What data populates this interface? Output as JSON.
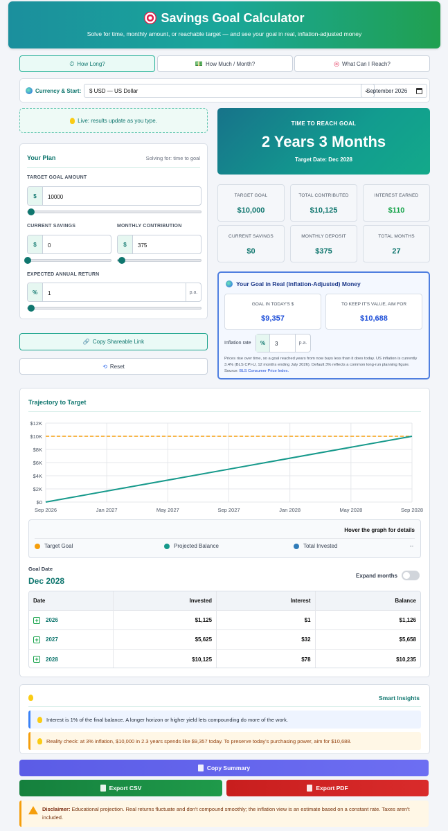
{
  "header": {
    "title": "Savings Goal Calculator",
    "subtitle": "Solve for time, monthly amount, or reachable target — and see your goal in real, inflation-adjusted money"
  },
  "tabs": [
    {
      "icon": "⏱",
      "label": "How Long?"
    },
    {
      "icon": "💵",
      "label": "How Much / Month?"
    },
    {
      "icon": "◎",
      "label": "What Can I Reach?"
    }
  ],
  "currency": {
    "label": "Currency & Start:",
    "selected": "$ USD — US Dollar",
    "start": "September 2026"
  },
  "live_note": "Live: results update as you type.",
  "plan": {
    "title": "Your Plan",
    "solving": "Solving for: time to goal",
    "target_label": "TARGET GOAL AMOUNT",
    "target_value": "10000",
    "target_slider": 0.02,
    "savings_label": "CURRENT SAVINGS",
    "savings_value": "0",
    "savings_slider": 0,
    "monthly_label": "MONTHLY CONTRIBUTION",
    "monthly_value": "375",
    "monthly_slider": 0.05,
    "return_label": "EXPECTED ANNUAL RETURN",
    "return_value": "1",
    "return_slider": 0.02,
    "return_suffix": "p.a.",
    "prefix_currency": "$",
    "prefix_percent": "%"
  },
  "buttons": {
    "copy_link": "Copy Shareable Link",
    "reset": "Reset",
    "copy_summary": "Copy Summary",
    "export_csv": "Export CSV",
    "export_pdf": "Export PDF"
  },
  "result": {
    "label": "TIME TO REACH GOAL",
    "value": "2 Years 3 Months",
    "target_date": "Target Date: Dec 2028"
  },
  "stats": [
    {
      "label": "TARGET GOAL",
      "value": "$10,000"
    },
    {
      "label": "TOTAL CONTRIBUTED",
      "value": "$10,125"
    },
    {
      "label": "INTEREST EARNED",
      "value": "$110"
    },
    {
      "label": "CURRENT SAVINGS",
      "value": "$0"
    },
    {
      "label": "MONTHLY DEPOSIT",
      "value": "$375"
    },
    {
      "label": "TOTAL MONTHS",
      "value": "27"
    }
  ],
  "real": {
    "title": "Your Goal in Real (Inflation-Adjusted) Money",
    "today_label": "GOAL IN TODAY'S $",
    "today_value": "$9,357",
    "aim_label": "TO KEEP IT'S VALUE, AIM FOR",
    "aim_value": "$10,688",
    "inflation_label": "Inflation rate",
    "inflation_value": "3",
    "note": "Prices rise over time, so a goal reached years from now buys less than it does today. US inflation is currently 3.4% (BLS CPI-U, 12 months ending July 2026). Default 3% reflects a common long-run planning figure. Source: ",
    "source_link": "BLS Consumer Price Index."
  },
  "trajectory": {
    "title": "Trajectory to Target",
    "hover_hint": "Hover the graph for details",
    "legend": [
      "Target Goal",
      "Projected Balance",
      "Total Invested"
    ],
    "legend_value": "--",
    "goal_date_label": "Goal Date",
    "goal_date_value": "Dec 2028",
    "expand_label": "Expand months"
  },
  "chart_data": {
    "type": "line",
    "x": [
      "Sep 2026",
      "Jan 2027",
      "May 2027",
      "Sep 2027",
      "Jan 2028",
      "May 2028",
      "Sep 2028"
    ],
    "y_ticks": [
      "$0",
      "$2K",
      "$4K",
      "$6K",
      "$8K",
      "$10K",
      "$12K"
    ],
    "ylim": [
      0,
      12000
    ],
    "series": [
      {
        "name": "Projected Balance",
        "color": "#16998b",
        "start": 0,
        "end": 10000
      },
      {
        "name": "Target Goal",
        "color": "#f59e0b",
        "value": 10000
      }
    ],
    "grid": true
  },
  "table": {
    "headers": [
      "Date",
      "Invested",
      "Interest",
      "Balance"
    ],
    "rows": [
      {
        "year": "2026",
        "invested": "$1,125",
        "interest": "$1",
        "balance": "$1,126"
      },
      {
        "year": "2027",
        "invested": "$5,625",
        "interest": "$32",
        "balance": "$5,658"
      },
      {
        "year": "2028",
        "invested": "$10,125",
        "interest": "$78",
        "balance": "$10,235"
      }
    ]
  },
  "insights": {
    "title": "Smart Insights",
    "items": [
      "Interest is 1% of the final balance. A longer horizon or higher yield lets compounding do more of the work.",
      "Reality check: at 3% inflation, $10,000 in 2.3 years spends like $9,357 today. To preserve today's purchasing power, aim for $10,688."
    ]
  },
  "disclaimer": {
    "bold": "Disclaimer:",
    "text": " Educational projection. Real returns fluctuate and don't compound smoothly; the inflation view is an estimate based on a constant rate. Taxes aren't included."
  }
}
